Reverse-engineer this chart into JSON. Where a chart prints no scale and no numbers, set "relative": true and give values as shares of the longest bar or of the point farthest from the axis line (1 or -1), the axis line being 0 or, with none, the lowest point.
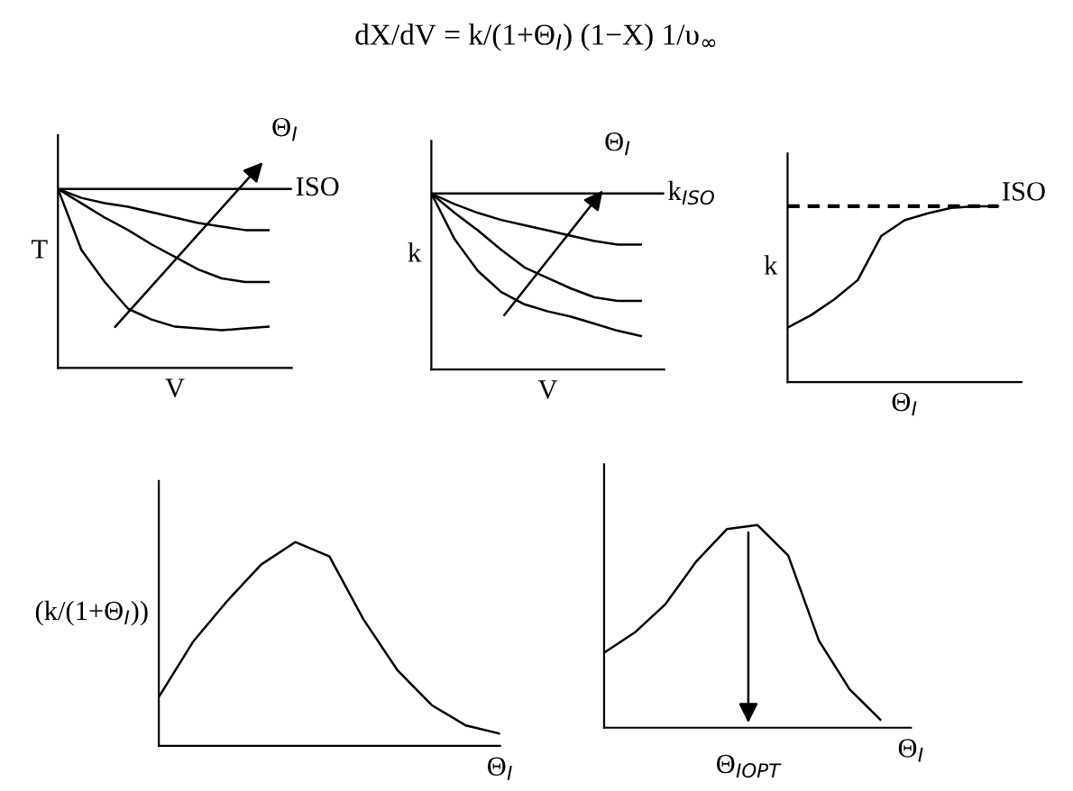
{
  "chart_data": [
    {
      "type": "line",
      "relative": true,
      "ylabel": "T",
      "xlabel": "V",
      "annotations": [
        "Θ$_{I}$"
      ],
      "tick_labels": false,
      "categories": [
        null,
        null,
        null,
        null,
        null,
        null,
        null,
        null,
        null,
        null,
        null
      ],
      "series": [
        {
          "name": "ISO",
          "color": "#000000",
          "values": [
            1,
            1,
            1,
            1,
            1,
            1,
            1,
            1,
            1,
            1,
            1
          ]
        },
        {
          "color": "#000000",
          "values": [
            1.0,
            0.95,
            0.92,
            0.9,
            0.87,
            0.84,
            0.81,
            0.79,
            0.77,
            0.77,
            null
          ]
        },
        {
          "color": "#000000",
          "values": [
            1.0,
            0.92,
            0.84,
            0.77,
            0.69,
            0.62,
            0.55,
            0.5,
            0.48,
            0.48,
            null
          ]
        },
        {
          "color": "#000000",
          "values": [
            1.0,
            0.66,
            0.48,
            0.33,
            0.27,
            0.23,
            0.22,
            0.21,
            0.22,
            0.23,
            null
          ]
        }
      ]
    },
    {
      "type": "line",
      "relative": true,
      "title": "dX/dV = k/(1+Θ$_{I}$) (1−X) 1/υ$_{∞}$",
      "ylabel": "k",
      "xlabel": "V",
      "annotations": [
        "Θ$_{I}$"
      ],
      "tick_labels": false,
      "categories": [
        null,
        null,
        null,
        null,
        null,
        null,
        null,
        null,
        null,
        null,
        null
      ],
      "series": [
        {
          "name": "k$_{ISO}$",
          "color": "#000000",
          "values": [
            1,
            1,
            1,
            1,
            1,
            1,
            1,
            1,
            1,
            1,
            1
          ]
        },
        {
          "color": "#000000",
          "values": [
            1.0,
            0.94,
            0.89,
            0.85,
            0.82,
            0.79,
            0.76,
            0.73,
            0.71,
            0.71,
            null
          ]
        },
        {
          "color": "#000000",
          "values": [
            1.0,
            0.89,
            0.79,
            0.68,
            0.58,
            0.52,
            0.46,
            0.41,
            0.39,
            0.39,
            null
          ]
        },
        {
          "color": "#000000",
          "values": [
            1.0,
            0.74,
            0.56,
            0.44,
            0.37,
            0.33,
            0.3,
            0.26,
            0.22,
            0.19,
            null
          ]
        }
      ]
    },
    {
      "type": "line",
      "relative": true,
      "ylabel": "k",
      "xlabel": "Θ$_{I}$",
      "tick_labels": false,
      "categories": [
        null,
        null,
        null,
        null,
        null,
        null,
        null,
        null,
        null,
        null,
        null
      ],
      "series": [
        {
          "name": "ISO",
          "color": "#000000",
          "line_style": "dashed",
          "values": [
            1,
            1,
            1,
            1,
            1,
            1,
            1,
            1,
            1,
            1,
            null
          ]
        },
        {
          "color": "#000000",
          "values": [
            0.31,
            0.38,
            0.47,
            0.58,
            0.83,
            0.92,
            0.96,
            0.99,
            1.0,
            1.0,
            null
          ]
        }
      ]
    },
    {
      "type": "line",
      "relative": true,
      "ylabel": "(k/(1+Θ$_{I}$))",
      "xlabel": "Θ$_{I}$",
      "tick_labels": false,
      "categories": [
        null,
        null,
        null,
        null,
        null,
        null,
        null,
        null,
        null,
        null,
        null
      ],
      "series": [
        {
          "color": "#000000",
          "values": [
            0.24,
            0.51,
            0.71,
            0.89,
            1.0,
            0.93,
            0.62,
            0.37,
            0.2,
            0.1,
            0.06
          ]
        }
      ]
    },
    {
      "type": "line",
      "relative": true,
      "xlabel": "Θ$_{I}$",
      "annotations": [
        "Θ$_{IOPT}$"
      ],
      "tick_labels": false,
      "categories": [
        null,
        null,
        null,
        null,
        null,
        null,
        null,
        null,
        null,
        null,
        null
      ],
      "series": [
        {
          "color": "#000000",
          "values": [
            0.37,
            0.47,
            0.61,
            0.82,
            0.98,
            1.0,
            0.85,
            0.43,
            0.19,
            0.04,
            null
          ]
        }
      ]
    }
  ]
}
